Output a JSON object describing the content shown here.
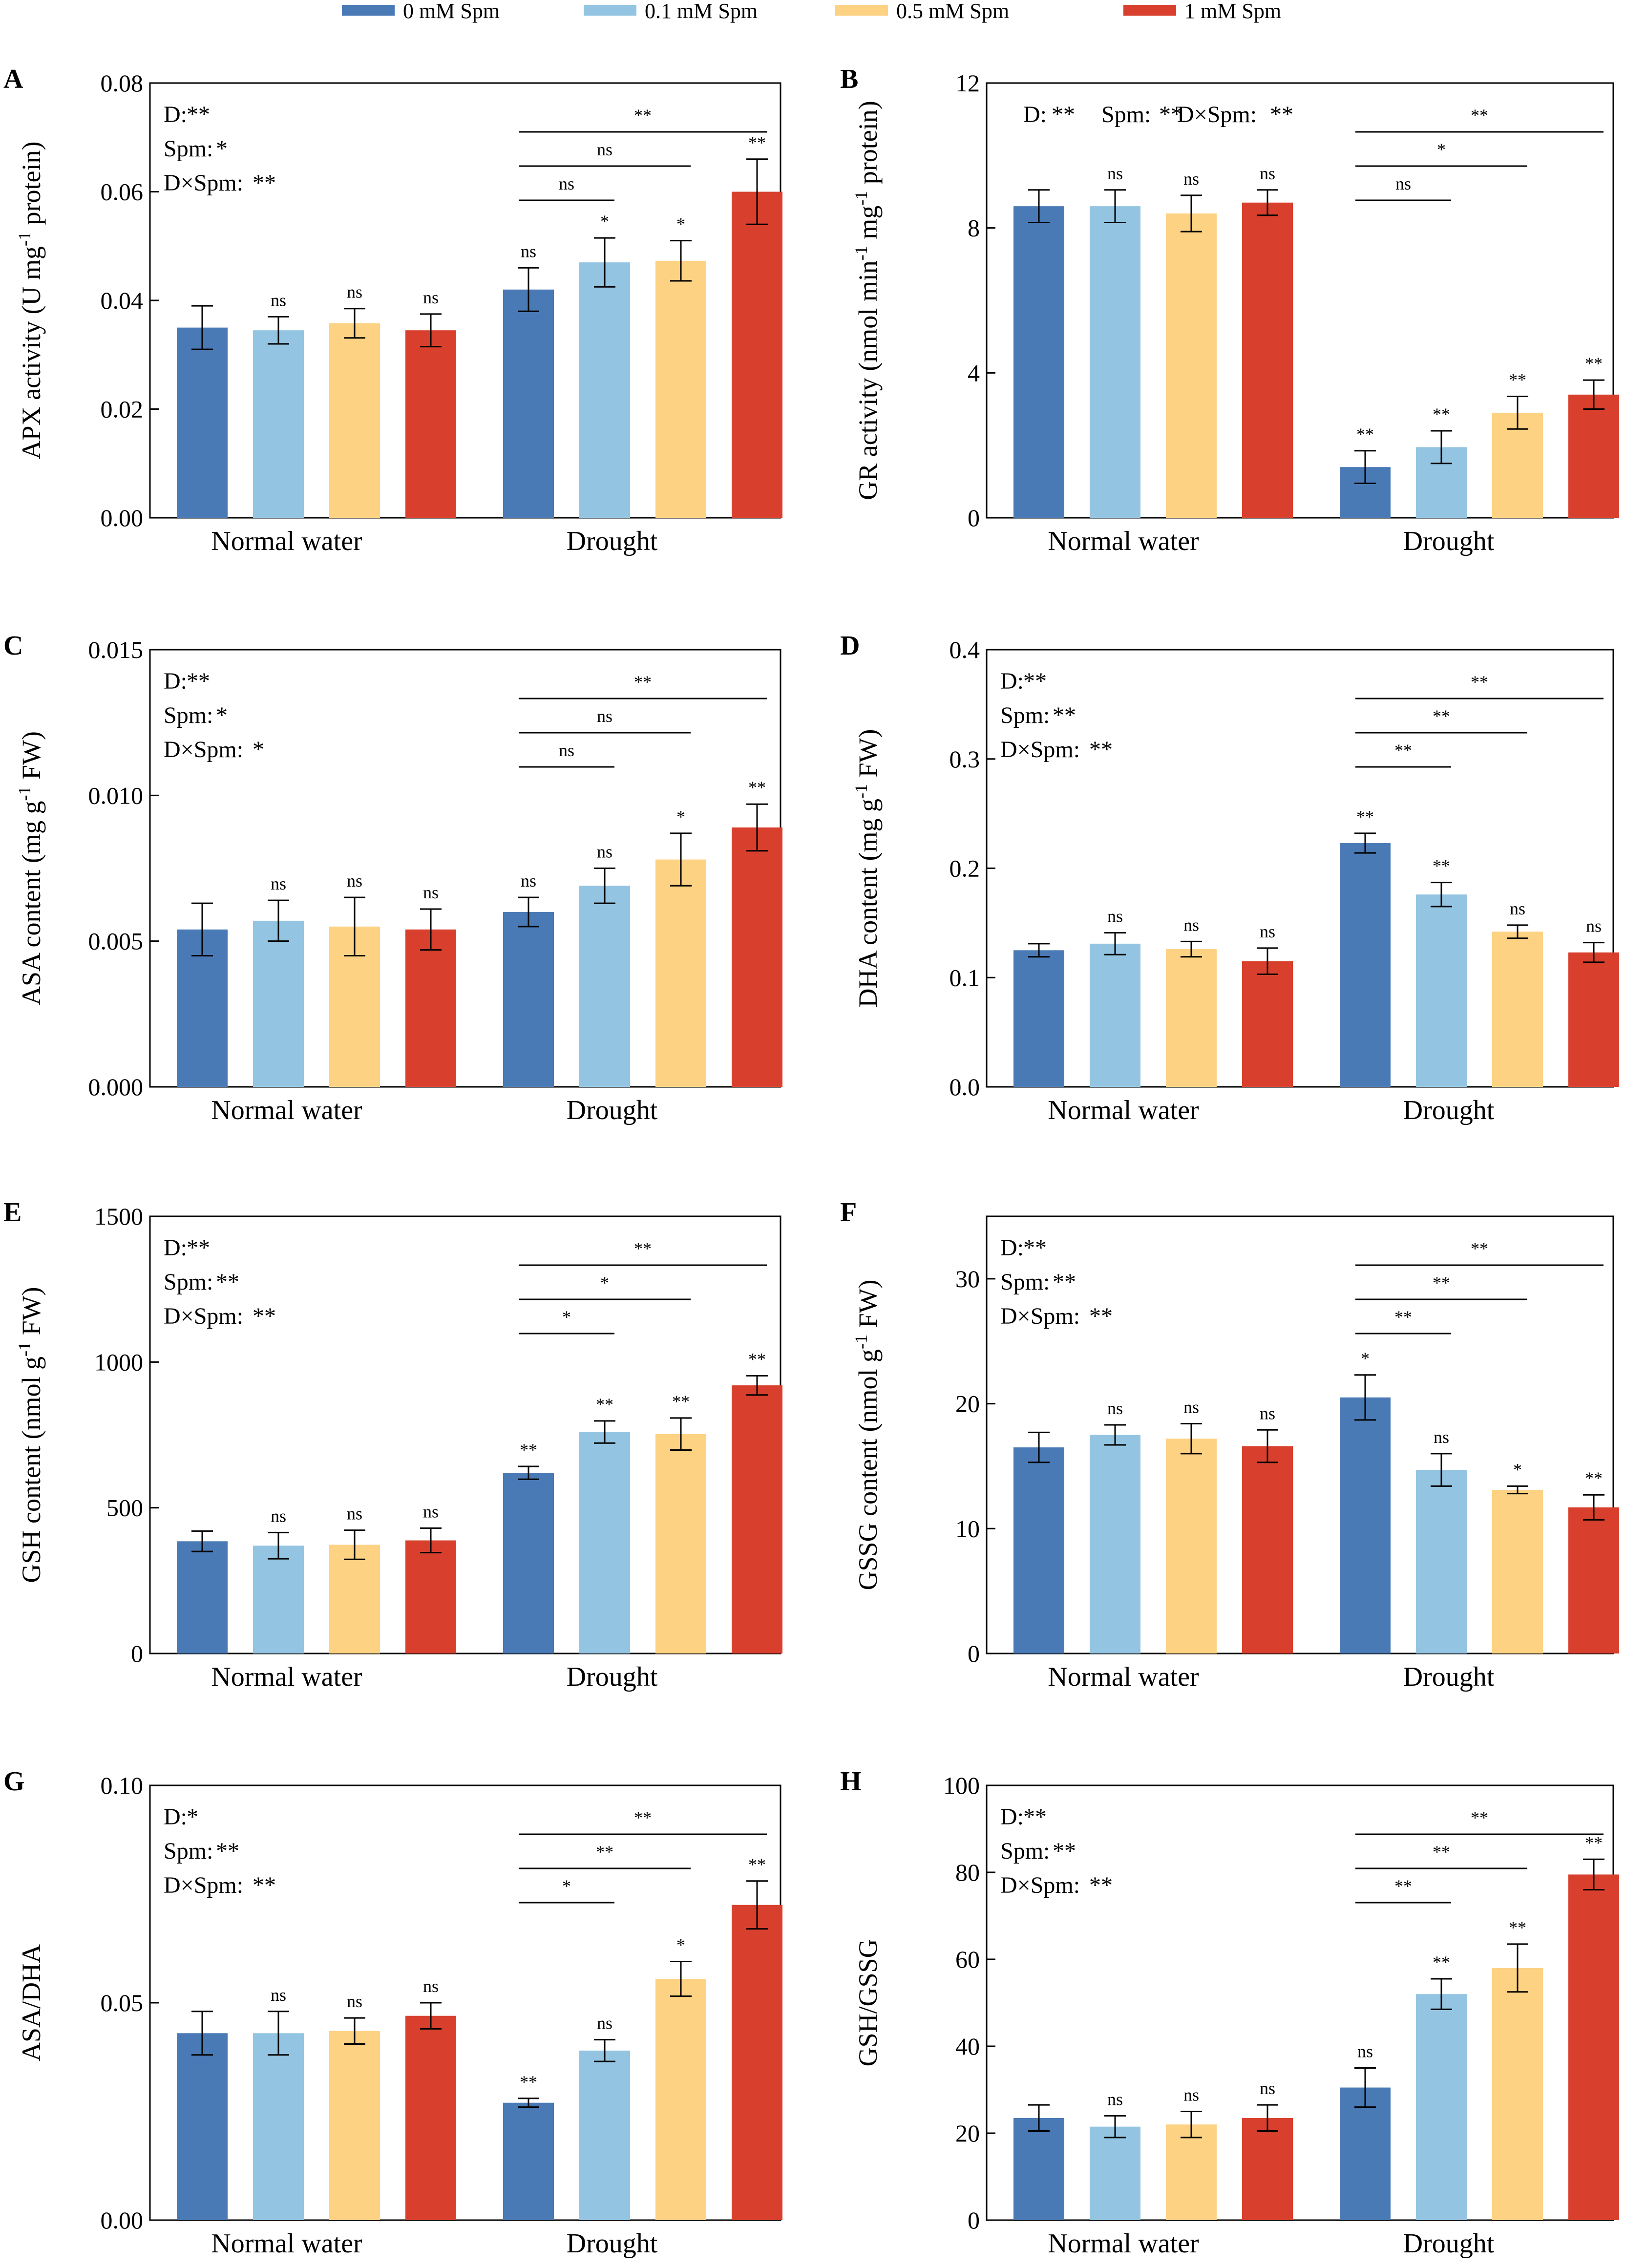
{
  "legend": {
    "items": [
      {
        "label": "0 mM Spm",
        "color": "#4a7ab6"
      },
      {
        "label": "0.1 mM Spm",
        "color": "#93c5e2"
      },
      {
        "label": "0.5 mM Spm",
        "color": "#fdd283"
      },
      {
        "label": "1 mM Spm",
        "color": "#d8402d"
      }
    ]
  },
  "chart_data": [
    {
      "panel": "A",
      "type": "bar",
      "ylabel": "APX activity (U mg",
      "ylabel_sup": "-1",
      "ylabel_post": " protein)",
      "ylim": [
        0,
        0.08
      ],
      "yticks": [
        0,
        0.02,
        0.04,
        0.06,
        0.08
      ],
      "yticklabels": [
        "0.00",
        "0.02",
        "0.04",
        "0.06",
        "0.08"
      ],
      "categories": [
        "Normal water",
        "Drought"
      ],
      "series": [
        {
          "name": "0 mM Spm",
          "values": [
            0.035,
            0.042
          ],
          "errors": [
            0.004,
            0.004
          ],
          "sig": [
            "",
            "ns"
          ]
        },
        {
          "name": "0.1 mM Spm",
          "values": [
            0.0345,
            0.047
          ],
          "errors": [
            0.0025,
            0.0045
          ],
          "sig": [
            "ns",
            "*"
          ]
        },
        {
          "name": "0.5 mM Spm",
          "values": [
            0.0358,
            0.0473
          ],
          "errors": [
            0.0027,
            0.0037
          ],
          "sig": [
            "ns",
            "*"
          ]
        },
        {
          "name": "1 mM Spm",
          "values": [
            0.0345,
            0.06
          ],
          "errors": [
            0.003,
            0.006
          ],
          "sig": [
            "ns",
            "**"
          ]
        }
      ],
      "stats": [
        {
          "label": "D:",
          "sig": "**"
        },
        {
          "label": "Spm:",
          "sig": "*"
        },
        {
          "label": "D×Spm:",
          "sig": "**"
        }
      ],
      "brackets": [
        {
          "to": 1,
          "sig": "ns"
        },
        {
          "to": 2,
          "sig": "ns"
        },
        {
          "to": 3,
          "sig": "**"
        }
      ]
    },
    {
      "panel": "B",
      "type": "bar",
      "ylabel": "GR activity (nmol min",
      "ylabel_sup": "-1",
      "ylabel_mid": " mg",
      "ylabel_sup2": "-1",
      "ylabel_post": " protein)",
      "ylim": [
        0,
        12
      ],
      "yticks": [
        0,
        4,
        8,
        12
      ],
      "yticklabels": [
        "0",
        "4",
        "8",
        "12"
      ],
      "categories": [
        "Normal water",
        "Drought"
      ],
      "series": [
        {
          "name": "0 mM Spm",
          "values": [
            8.6,
            1.4
          ],
          "errors": [
            0.45,
            0.45
          ],
          "sig": [
            "",
            "**"
          ]
        },
        {
          "name": "0.1 mM Spm",
          "values": [
            8.6,
            1.95
          ],
          "errors": [
            0.45,
            0.45
          ],
          "sig": [
            "ns",
            "**"
          ]
        },
        {
          "name": "0.5 mM Spm",
          "values": [
            8.4,
            2.9
          ],
          "errors": [
            0.5,
            0.45
          ],
          "sig": [
            "ns",
            "**"
          ]
        },
        {
          "name": "1 mM Spm",
          "values": [
            8.7,
            3.4
          ],
          "errors": [
            0.35,
            0.4
          ],
          "sig": [
            "ns",
            "**"
          ]
        }
      ],
      "stats_inline": true,
      "stats": [
        {
          "label": "D:",
          "sig": "**"
        },
        {
          "label": "Spm:",
          "sig": "**"
        },
        {
          "label": "D×Spm:",
          "sig": "**"
        }
      ],
      "brackets": [
        {
          "to": 1,
          "sig": "ns"
        },
        {
          "to": 2,
          "sig": "*"
        },
        {
          "to": 3,
          "sig": "**"
        }
      ]
    },
    {
      "panel": "C",
      "type": "bar",
      "ylabel": "ASA content (mg g",
      "ylabel_sup": "-1",
      "ylabel_post": " FW)",
      "ylim": [
        0,
        0.015
      ],
      "yticks": [
        0,
        0.005,
        0.01,
        0.015
      ],
      "yticklabels": [
        "0.000",
        "0.005",
        "0.010",
        "0.015"
      ],
      "categories": [
        "Normal water",
        "Drought"
      ],
      "series": [
        {
          "name": "0 mM Spm",
          "values": [
            0.0054,
            0.006
          ],
          "errors": [
            0.0009,
            0.0005
          ],
          "sig": [
            "",
            "ns"
          ]
        },
        {
          "name": "0.1 mM Spm",
          "values": [
            0.0057,
            0.0069
          ],
          "errors": [
            0.0007,
            0.0006
          ],
          "sig": [
            "ns",
            "ns"
          ]
        },
        {
          "name": "0.5 mM Spm",
          "values": [
            0.0055,
            0.0078
          ],
          "errors": [
            0.001,
            0.0009
          ],
          "sig": [
            "ns",
            "*"
          ]
        },
        {
          "name": "1 mM Spm",
          "values": [
            0.0054,
            0.0089
          ],
          "errors": [
            0.0007,
            0.0008
          ],
          "sig": [
            "ns",
            "**"
          ]
        }
      ],
      "stats": [
        {
          "label": "D:",
          "sig": "**"
        },
        {
          "label": "Spm:",
          "sig": "*"
        },
        {
          "label": "D×Spm:",
          "sig": "*"
        }
      ],
      "brackets": [
        {
          "to": 1,
          "sig": "ns"
        },
        {
          "to": 2,
          "sig": "ns"
        },
        {
          "to": 3,
          "sig": "**"
        }
      ]
    },
    {
      "panel": "D",
      "type": "bar",
      "ylabel": "DHA content (mg g",
      "ylabel_sup": "-1",
      "ylabel_post": " FW)",
      "ylim": [
        0,
        0.4
      ],
      "yticks": [
        0,
        0.1,
        0.2,
        0.3,
        0.4
      ],
      "yticklabels": [
        "0.0",
        "0.1",
        "0.2",
        "0.3",
        "0.4"
      ],
      "categories": [
        "Normal water",
        "Drought"
      ],
      "series": [
        {
          "name": "0 mM Spm",
          "values": [
            0.125,
            0.223
          ],
          "errors": [
            0.006,
            0.009
          ],
          "sig": [
            "",
            "**"
          ]
        },
        {
          "name": "0.1 mM Spm",
          "values": [
            0.131,
            0.176
          ],
          "errors": [
            0.01,
            0.011
          ],
          "sig": [
            "ns",
            "**"
          ]
        },
        {
          "name": "0.5 mM Spm",
          "values": [
            0.126,
            0.142
          ],
          "errors": [
            0.007,
            0.006
          ],
          "sig": [
            "ns",
            "ns"
          ]
        },
        {
          "name": "1 mM Spm",
          "values": [
            0.115,
            0.123
          ],
          "errors": [
            0.012,
            0.009
          ],
          "sig": [
            "ns",
            "ns"
          ]
        }
      ],
      "stats": [
        {
          "label": "D:",
          "sig": "**"
        },
        {
          "label": "Spm:",
          "sig": "**"
        },
        {
          "label": "D×Spm:",
          "sig": "**"
        }
      ],
      "brackets": [
        {
          "to": 1,
          "sig": "**"
        },
        {
          "to": 2,
          "sig": "**"
        },
        {
          "to": 3,
          "sig": "**"
        }
      ]
    },
    {
      "panel": "E",
      "type": "bar",
      "ylabel": "GSH content (nmol g",
      "ylabel_sup": "-1",
      "ylabel_post": " FW)",
      "ylim": [
        0,
        1500
      ],
      "yticks": [
        0,
        500,
        1000,
        1500
      ],
      "yticklabels": [
        "0",
        "500",
        "1000",
        "1500"
      ],
      "categories": [
        "Normal water",
        "Drought"
      ],
      "series": [
        {
          "name": "0 mM Spm",
          "values": [
            385,
            620
          ],
          "errors": [
            35,
            22
          ],
          "sig": [
            "",
            "**"
          ]
        },
        {
          "name": "0.1 mM Spm",
          "values": [
            370,
            760
          ],
          "errors": [
            45,
            38
          ],
          "sig": [
            "ns",
            "**"
          ]
        },
        {
          "name": "0.5 mM Spm",
          "values": [
            373,
            753
          ],
          "errors": [
            50,
            55
          ],
          "sig": [
            "ns",
            "**"
          ]
        },
        {
          "name": "1 mM Spm",
          "values": [
            388,
            920
          ],
          "errors": [
            42,
            33
          ],
          "sig": [
            "ns",
            "**"
          ]
        }
      ],
      "stats": [
        {
          "label": "D:",
          "sig": "**"
        },
        {
          "label": "Spm:",
          "sig": "**"
        },
        {
          "label": "D×Spm:",
          "sig": "**"
        }
      ],
      "brackets": [
        {
          "to": 1,
          "sig": "*"
        },
        {
          "to": 2,
          "sig": "*"
        },
        {
          "to": 3,
          "sig": "**"
        }
      ]
    },
    {
      "panel": "F",
      "type": "bar",
      "ylabel": "GSSG content (nmol g",
      "ylabel_sup": "-1",
      "ylabel_post": " FW)",
      "ylim": [
        0,
        35
      ],
      "yticks": [
        0,
        10,
        20,
        30
      ],
      "yticklabels": [
        "0",
        "10",
        "20",
        "30"
      ],
      "categories": [
        "Normal water",
        "Drought"
      ],
      "series": [
        {
          "name": "0 mM Spm",
          "values": [
            16.5,
            20.5
          ],
          "errors": [
            1.2,
            1.8
          ],
          "sig": [
            "",
            "*"
          ]
        },
        {
          "name": "0.1 mM Spm",
          "values": [
            17.5,
            14.7
          ],
          "errors": [
            0.8,
            1.3
          ],
          "sig": [
            "ns",
            "ns"
          ]
        },
        {
          "name": "0.5 mM Spm",
          "values": [
            17.2,
            13.1
          ],
          "errors": [
            1.2,
            0.3
          ],
          "sig": [
            "ns",
            "*"
          ]
        },
        {
          "name": "1 mM Spm",
          "values": [
            16.6,
            11.7
          ],
          "errors": [
            1.3,
            1.0
          ],
          "sig": [
            "ns",
            "**"
          ]
        }
      ],
      "stats": [
        {
          "label": "D:",
          "sig": "**"
        },
        {
          "label": "Spm:",
          "sig": "**"
        },
        {
          "label": "D×Spm:",
          "sig": "**"
        }
      ],
      "brackets": [
        {
          "to": 1,
          "sig": "**"
        },
        {
          "to": 2,
          "sig": "**"
        },
        {
          "to": 3,
          "sig": "**"
        }
      ]
    },
    {
      "panel": "G",
      "type": "bar",
      "ylabel": "ASA/DHA",
      "ylim": [
        0,
        0.1
      ],
      "yticks": [
        0,
        0.05,
        0.1
      ],
      "yticklabels": [
        "0.00",
        "0.05",
        "0.10"
      ],
      "categories": [
        "Normal water",
        "Drought"
      ],
      "series": [
        {
          "name": "0 mM Spm",
          "values": [
            0.043,
            0.027
          ],
          "errors": [
            0.005,
            0.001
          ],
          "sig": [
            "",
            "**"
          ]
        },
        {
          "name": "0.1 mM Spm",
          "values": [
            0.043,
            0.039
          ],
          "errors": [
            0.005,
            0.0025
          ],
          "sig": [
            "ns",
            "ns"
          ]
        },
        {
          "name": "0.5 mM Spm",
          "values": [
            0.0435,
            0.0555
          ],
          "errors": [
            0.003,
            0.004
          ],
          "sig": [
            "ns",
            "*"
          ]
        },
        {
          "name": "1 mM Spm",
          "values": [
            0.047,
            0.0725
          ],
          "errors": [
            0.003,
            0.0055
          ],
          "sig": [
            "ns",
            "**"
          ]
        }
      ],
      "stats": [
        {
          "label": "D:",
          "sig": "*"
        },
        {
          "label": "Spm:",
          "sig": "**"
        },
        {
          "label": "D×Spm:",
          "sig": "**"
        }
      ],
      "brackets": [
        {
          "to": 1,
          "sig": "*"
        },
        {
          "to": 2,
          "sig": "**"
        },
        {
          "to": 3,
          "sig": "**"
        }
      ]
    },
    {
      "panel": "H",
      "type": "bar",
      "ylabel": "GSH/GSSG",
      "ylim": [
        0,
        100
      ],
      "yticks": [
        0,
        20,
        40,
        60,
        80,
        100
      ],
      "yticklabels": [
        "0",
        "20",
        "40",
        "60",
        "80",
        "100"
      ],
      "categories": [
        "Normal water",
        "Drought"
      ],
      "series": [
        {
          "name": "0 mM Spm",
          "values": [
            23.5,
            30.5
          ],
          "errors": [
            3,
            4.5
          ],
          "sig": [
            "",
            "ns"
          ]
        },
        {
          "name": "0.1 mM Spm",
          "values": [
            21.5,
            52
          ],
          "errors": [
            2.5,
            3.5
          ],
          "sig": [
            "ns",
            "**"
          ]
        },
        {
          "name": "0.5 mM Spm",
          "values": [
            22,
            58
          ],
          "errors": [
            3,
            5.5
          ],
          "sig": [
            "ns",
            "**"
          ]
        },
        {
          "name": "1 mM Spm",
          "values": [
            23.5,
            79.5
          ],
          "errors": [
            3,
            3.5
          ],
          "sig": [
            "ns",
            "**"
          ]
        }
      ],
      "stats": [
        {
          "label": "D:",
          "sig": "**"
        },
        {
          "label": "Spm:",
          "sig": "**"
        },
        {
          "label": "D×Spm:",
          "sig": "**"
        }
      ],
      "brackets": [
        {
          "to": 1,
          "sig": "**"
        },
        {
          "to": 2,
          "sig": "**"
        },
        {
          "to": 3,
          "sig": "**"
        }
      ]
    }
  ]
}
